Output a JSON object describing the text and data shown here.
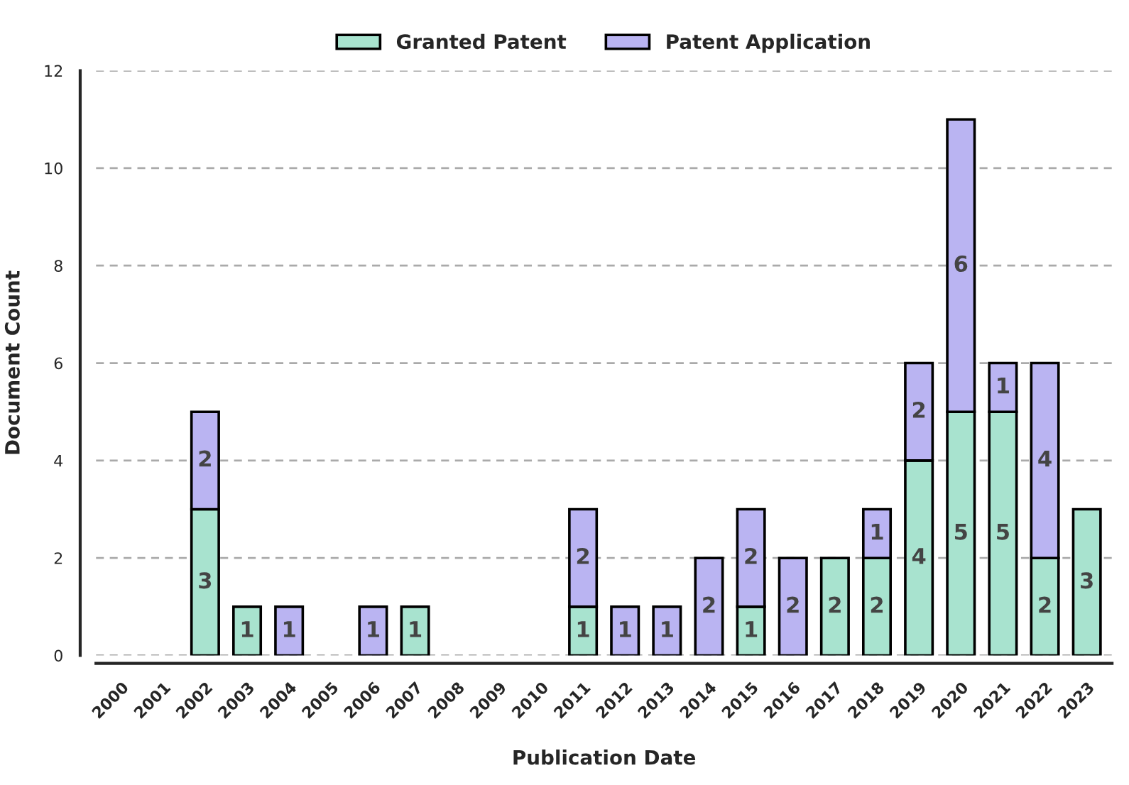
{
  "chart_data": {
    "type": "bar",
    "stacked": true,
    "xlabel": "Publication Date",
    "ylabel": "Document Count",
    "categories": [
      "2000",
      "2001",
      "2002",
      "2003",
      "2004",
      "2005",
      "2006",
      "2007",
      "2008",
      "2009",
      "2010",
      "2011",
      "2012",
      "2013",
      "2014",
      "2015",
      "2016",
      "2017",
      "2018",
      "2019",
      "2020",
      "2021",
      "2022",
      "2023"
    ],
    "series": [
      {
        "name": "Granted Patent",
        "color": "#a8e3cf",
        "values": [
          null,
          null,
          3,
          1,
          null,
          null,
          null,
          1,
          null,
          null,
          null,
          1,
          null,
          null,
          null,
          1,
          null,
          2,
          2,
          4,
          5,
          5,
          2,
          3
        ]
      },
      {
        "name": "Patent Application",
        "color": "#bab4f2",
        "values": [
          null,
          null,
          2,
          null,
          1,
          null,
          1,
          null,
          null,
          null,
          null,
          2,
          1,
          1,
          2,
          2,
          2,
          null,
          1,
          2,
          6,
          1,
          4,
          null
        ]
      }
    ],
    "ylim": [
      0,
      12
    ],
    "yticks": [
      0,
      2,
      4,
      6,
      8,
      10,
      12
    ],
    "grid": "y",
    "legend": "top",
    "data_labels": true
  }
}
